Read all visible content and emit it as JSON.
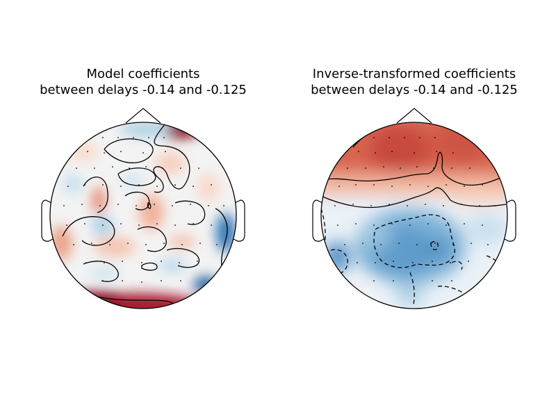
{
  "panels": [
    {
      "title_line1": "Model coefficients",
      "title_line2": "between delays -0.14 and -0.125"
    },
    {
      "title_line1": "Inverse-transformed coefficients",
      "title_line2": "between delays -0.14 and -0.125"
    }
  ],
  "colors": {
    "positive": "#b2182b",
    "negative": "#2166ac",
    "neutral": "#f7f7f7",
    "outline": "#000000"
  },
  "colormap": "RdBu_r"
}
